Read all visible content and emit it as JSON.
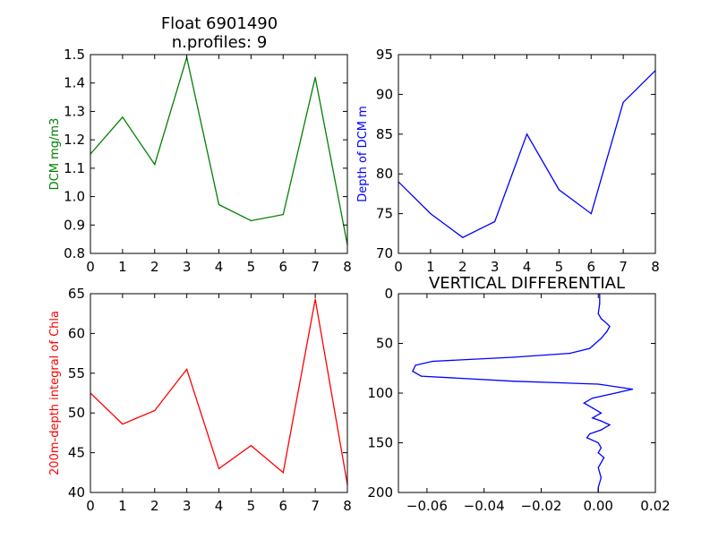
{
  "figure_title": "Float 6901490",
  "figure_subtitle": "n.profiles: 9",
  "chart_data": [
    {
      "type": "line",
      "panel": "top-left",
      "title": "",
      "xlabel": "",
      "ylabel": "DCM mg/m3",
      "color": "#008000",
      "x": [
        0,
        1,
        2,
        3,
        4,
        5,
        6,
        7,
        8
      ],
      "y": [
        1.15,
        1.28,
        1.113,
        1.49,
        0.972,
        0.915,
        0.937,
        1.42,
        0.83
      ],
      "xlim": [
        0,
        8
      ],
      "ylim": [
        0.8,
        1.5
      ],
      "xticks": [
        "0",
        "1",
        "2",
        "3",
        "4",
        "5",
        "6",
        "7",
        "8"
      ],
      "yticks": [
        "0.8",
        "0.9",
        "1.0",
        "1.1",
        "1.2",
        "1.3",
        "1.4",
        "1.5"
      ],
      "grid": false
    },
    {
      "type": "line",
      "panel": "top-right",
      "title": "",
      "xlabel": "",
      "ylabel": "Depth of DCM m",
      "color": "#0000ff",
      "x": [
        0,
        1,
        2,
        3,
        4,
        5,
        6,
        7,
        8
      ],
      "y": [
        79,
        75,
        72,
        74,
        85,
        78,
        75,
        89,
        93
      ],
      "xlim": [
        0,
        8
      ],
      "ylim": [
        70,
        95
      ],
      "xticks": [
        "0",
        "1",
        "2",
        "3",
        "4",
        "5",
        "6",
        "7",
        "8"
      ],
      "yticks": [
        "70",
        "75",
        "80",
        "85",
        "90",
        "95"
      ],
      "grid": false
    },
    {
      "type": "line",
      "panel": "bottom-left",
      "title": "",
      "xlabel": "",
      "ylabel": "200m-depth integral of Chla",
      "color": "#ff0000",
      "x": [
        0,
        1,
        2,
        3,
        4,
        5,
        6,
        7,
        8
      ],
      "y": [
        52.5,
        48.6,
        50.3,
        55.5,
        43.0,
        45.9,
        42.5,
        64.3,
        41.0
      ],
      "xlim": [
        0,
        8
      ],
      "ylim": [
        40,
        65
      ],
      "xticks": [
        "0",
        "1",
        "2",
        "3",
        "4",
        "5",
        "6",
        "7",
        "8"
      ],
      "yticks": [
        "40",
        "45",
        "50",
        "55",
        "60",
        "65"
      ],
      "grid": false
    },
    {
      "type": "line",
      "panel": "bottom-right",
      "title": "VERTICAL DIFFERENTIAL",
      "xlabel": "",
      "ylabel": "",
      "color": "#0000ff",
      "y_inverted": true,
      "x": [
        0.0005,
        0.0005,
        0.0,
        0.001,
        0.003,
        0.004,
        0.003,
        0.001,
        -0.001,
        -0.003,
        -0.01,
        -0.03,
        -0.058,
        -0.064,
        -0.065,
        -0.062,
        -0.03,
        0.0,
        0.012,
        0.006,
        -0.002,
        -0.005,
        -0.002,
        0.001,
        -0.002,
        0.001,
        0.004,
        0.001,
        -0.003,
        -0.004,
        0.0,
        0.001,
        0.0,
        0.002,
        0.0,
        0.001,
        0.0,
        0.0
      ],
      "y": [
        0,
        10,
        20,
        25,
        30,
        33,
        38,
        45,
        50,
        55,
        60,
        64,
        68,
        72,
        78,
        83,
        88,
        91,
        96,
        100,
        105,
        110,
        115,
        120,
        125,
        128,
        132,
        137,
        141,
        145,
        150,
        155,
        160,
        165,
        175,
        185,
        195,
        200
      ],
      "xlim": [
        -0.07,
        0.02
      ],
      "ylim": [
        200,
        0
      ],
      "xticks": [
        "−0.06",
        "−0.04",
        "−0.02",
        "0.00",
        "0.02"
      ],
      "xtick_values": [
        -0.06,
        -0.04,
        -0.02,
        0.0,
        0.02
      ],
      "yticks": [
        "0",
        "50",
        "100",
        "150",
        "200"
      ],
      "grid": false
    }
  ]
}
